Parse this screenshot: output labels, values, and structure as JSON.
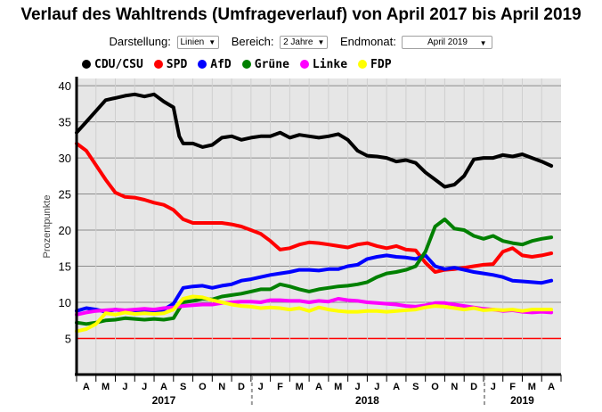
{
  "title": "Verlauf des Wahltrends (Umfrageverlauf) von April 2017 bis April 2019",
  "controls": {
    "darstellung": {
      "label": "Darstellung:",
      "value": "Linien"
    },
    "bereich": {
      "label": "Bereich:",
      "value": "2 Jahre"
    },
    "endmonat": {
      "label": "Endmonat:",
      "value": "April 2019"
    }
  },
  "chart_data": {
    "type": "line",
    "title": "Verlauf des Wahltrends (Umfrageverlauf) von April 2017 bis April 2019",
    "ylabel": "Prozentpunkte",
    "xlabel": "",
    "ylim": [
      0,
      41
    ],
    "yticks": [
      5,
      10,
      15,
      20,
      25,
      30,
      35,
      40
    ],
    "grid": true,
    "threshold": {
      "value": 5,
      "color": "#ff0000"
    },
    "months": [
      "A",
      "M",
      "J",
      "J",
      "A",
      "S",
      "O",
      "N",
      "D",
      "J",
      "F",
      "M",
      "A",
      "M",
      "J",
      "J",
      "A",
      "S",
      "O",
      "N",
      "D",
      "J",
      "F",
      "M",
      "A"
    ],
    "years": [
      {
        "label": "2017",
        "start_index": 0,
        "end_index": 8
      },
      {
        "label": "2018",
        "start_index": 9,
        "end_index": 20
      },
      {
        "label": "2019",
        "start_index": 21,
        "end_index": 24
      }
    ],
    "series": [
      {
        "name": "CDU/CSU",
        "color": "#000000",
        "points": [
          [
            0,
            33.5
          ],
          [
            0.5,
            35
          ],
          [
            1,
            36.5
          ],
          [
            1.5,
            38
          ],
          [
            2,
            38.3
          ],
          [
            2.5,
            38.6
          ],
          [
            3,
            38.8
          ],
          [
            3.5,
            38.5
          ],
          [
            4,
            38.8
          ],
          [
            4.5,
            37.8
          ],
          [
            5,
            37
          ],
          [
            5.3,
            33
          ],
          [
            5.5,
            32
          ],
          [
            6,
            32
          ],
          [
            6.5,
            31.5
          ],
          [
            7,
            31.8
          ],
          [
            7.5,
            32.8
          ],
          [
            8,
            33
          ],
          [
            8.5,
            32.5
          ],
          [
            9,
            32.8
          ],
          [
            9.5,
            33
          ],
          [
            10,
            33
          ],
          [
            10.5,
            33.5
          ],
          [
            11,
            32.8
          ],
          [
            11.5,
            33.2
          ],
          [
            12,
            33
          ],
          [
            12.5,
            32.8
          ],
          [
            13,
            33
          ],
          [
            13.5,
            33.3
          ],
          [
            14,
            32.5
          ],
          [
            14.5,
            31
          ],
          [
            15,
            30.3
          ],
          [
            15.5,
            30.2
          ],
          [
            16,
            30
          ],
          [
            16.5,
            29.5
          ],
          [
            17,
            29.7
          ],
          [
            17.5,
            29.3
          ],
          [
            18,
            28
          ],
          [
            18.5,
            27
          ],
          [
            19,
            26
          ],
          [
            19.5,
            26.3
          ],
          [
            20,
            27.5
          ],
          [
            20.5,
            29.8
          ],
          [
            21,
            30
          ],
          [
            21.5,
            30
          ],
          [
            22,
            30.4
          ],
          [
            22.5,
            30.2
          ],
          [
            23,
            30.5
          ],
          [
            23.5,
            30
          ],
          [
            24,
            29.5
          ],
          [
            24.5,
            28.9
          ]
        ]
      },
      {
        "name": "SPD",
        "color": "#ff0000",
        "points": [
          [
            0,
            32
          ],
          [
            0.5,
            31
          ],
          [
            1,
            29
          ],
          [
            1.5,
            27
          ],
          [
            2,
            25.2
          ],
          [
            2.5,
            24.6
          ],
          [
            3,
            24.5
          ],
          [
            3.5,
            24.2
          ],
          [
            4,
            23.8
          ],
          [
            4.5,
            23.5
          ],
          [
            5,
            22.8
          ],
          [
            5.5,
            21.5
          ],
          [
            6,
            21
          ],
          [
            6.5,
            21
          ],
          [
            7,
            21
          ],
          [
            7.5,
            21
          ],
          [
            8,
            20.8
          ],
          [
            8.5,
            20.5
          ],
          [
            9,
            20
          ],
          [
            9.5,
            19.5
          ],
          [
            10,
            18.5
          ],
          [
            10.5,
            17.3
          ],
          [
            11,
            17.5
          ],
          [
            11.5,
            18
          ],
          [
            12,
            18.3
          ],
          [
            12.5,
            18.2
          ],
          [
            13,
            18
          ],
          [
            13.5,
            17.8
          ],
          [
            14,
            17.6
          ],
          [
            14.5,
            18
          ],
          [
            15,
            18.2
          ],
          [
            15.5,
            17.8
          ],
          [
            16,
            17.5
          ],
          [
            16.5,
            17.8
          ],
          [
            17,
            17.3
          ],
          [
            17.5,
            17.2
          ],
          [
            18,
            15.5
          ],
          [
            18.5,
            14.2
          ],
          [
            19,
            14.5
          ],
          [
            19.5,
            14.6
          ],
          [
            20,
            14.8
          ],
          [
            20.5,
            15
          ],
          [
            21,
            15.2
          ],
          [
            21.5,
            15.3
          ],
          [
            22,
            17
          ],
          [
            22.5,
            17.5
          ],
          [
            23,
            16.5
          ],
          [
            23.5,
            16.3
          ],
          [
            24,
            16.5
          ],
          [
            24.5,
            16.8
          ]
        ]
      },
      {
        "name": "AfD",
        "color": "#0000ff",
        "points": [
          [
            0,
            8.8
          ],
          [
            0.5,
            9.2
          ],
          [
            1,
            9
          ],
          [
            1.5,
            8.7
          ],
          [
            2,
            9
          ],
          [
            2.5,
            8.8
          ],
          [
            3,
            8.7
          ],
          [
            3.5,
            8.6
          ],
          [
            4,
            8.8
          ],
          [
            4.5,
            9
          ],
          [
            5,
            9.8
          ],
          [
            5.5,
            12
          ],
          [
            6,
            12.2
          ],
          [
            6.5,
            12.3
          ],
          [
            7,
            12
          ],
          [
            7.5,
            12.3
          ],
          [
            8,
            12.5
          ],
          [
            8.5,
            13
          ],
          [
            9,
            13.2
          ],
          [
            9.5,
            13.5
          ],
          [
            10,
            13.8
          ],
          [
            10.5,
            14
          ],
          [
            11,
            14.2
          ],
          [
            11.5,
            14.5
          ],
          [
            12,
            14.5
          ],
          [
            12.5,
            14.4
          ],
          [
            13,
            14.6
          ],
          [
            13.5,
            14.6
          ],
          [
            14,
            15
          ],
          [
            14.5,
            15.2
          ],
          [
            15,
            16
          ],
          [
            15.5,
            16.3
          ],
          [
            16,
            16.5
          ],
          [
            16.5,
            16.3
          ],
          [
            17,
            16.2
          ],
          [
            17.5,
            16
          ],
          [
            18,
            16.5
          ],
          [
            18.5,
            15
          ],
          [
            19,
            14.6
          ],
          [
            19.5,
            14.8
          ],
          [
            20,
            14.5
          ],
          [
            20.5,
            14.2
          ],
          [
            21,
            14
          ],
          [
            21.5,
            13.8
          ],
          [
            22,
            13.5
          ],
          [
            22.5,
            13
          ],
          [
            23,
            12.9
          ],
          [
            23.5,
            12.8
          ],
          [
            24,
            12.7
          ],
          [
            24.5,
            13
          ]
        ]
      },
      {
        "name": "Grüne",
        "color": "#008000",
        "points": [
          [
            0,
            7.2
          ],
          [
            0.5,
            7
          ],
          [
            1,
            7.2
          ],
          [
            1.5,
            7.5
          ],
          [
            2,
            7.6
          ],
          [
            2.5,
            7.8
          ],
          [
            3,
            7.7
          ],
          [
            3.5,
            7.6
          ],
          [
            4,
            7.7
          ],
          [
            4.5,
            7.6
          ],
          [
            5,
            7.8
          ],
          [
            5.5,
            10
          ],
          [
            6,
            10.2
          ],
          [
            6.5,
            10.5
          ],
          [
            7,
            10.4
          ],
          [
            7.5,
            10.8
          ],
          [
            8,
            11
          ],
          [
            8.5,
            11.2
          ],
          [
            9,
            11.5
          ],
          [
            9.5,
            11.8
          ],
          [
            10,
            11.8
          ],
          [
            10.5,
            12.5
          ],
          [
            11,
            12.2
          ],
          [
            11.5,
            11.8
          ],
          [
            12,
            11.5
          ],
          [
            12.5,
            11.8
          ],
          [
            13,
            12
          ],
          [
            13.5,
            12.2
          ],
          [
            14,
            12.3
          ],
          [
            14.5,
            12.5
          ],
          [
            15,
            12.8
          ],
          [
            15.5,
            13.5
          ],
          [
            16,
            14
          ],
          [
            16.5,
            14.2
          ],
          [
            17,
            14.5
          ],
          [
            17.5,
            15
          ],
          [
            18,
            17
          ],
          [
            18.5,
            20.5
          ],
          [
            19,
            21.5
          ],
          [
            19.5,
            20.2
          ],
          [
            20,
            20
          ],
          [
            20.5,
            19.2
          ],
          [
            21,
            18.8
          ],
          [
            21.5,
            19.2
          ],
          [
            22,
            18.5
          ],
          [
            22.5,
            18.2
          ],
          [
            23,
            18
          ],
          [
            23.5,
            18.5
          ],
          [
            24,
            18.8
          ],
          [
            24.5,
            19
          ]
        ]
      },
      {
        "name": "Linke",
        "color": "#ff00ff",
        "points": [
          [
            0,
            8.3
          ],
          [
            0.5,
            8.6
          ],
          [
            1,
            8.8
          ],
          [
            1.5,
            8.9
          ],
          [
            2,
            9
          ],
          [
            2.5,
            8.9
          ],
          [
            3,
            9
          ],
          [
            3.5,
            9.1
          ],
          [
            4,
            9
          ],
          [
            4.5,
            9.2
          ],
          [
            5,
            9.3
          ],
          [
            5.5,
            9.5
          ],
          [
            6,
            9.6
          ],
          [
            6.5,
            9.7
          ],
          [
            7,
            9.7
          ],
          [
            7.5,
            9.9
          ],
          [
            8,
            10
          ],
          [
            8.5,
            10.1
          ],
          [
            9,
            10.1
          ],
          [
            9.5,
            10
          ],
          [
            10,
            10.3
          ],
          [
            10.5,
            10.3
          ],
          [
            11,
            10.2
          ],
          [
            11.5,
            10.2
          ],
          [
            12,
            10
          ],
          [
            12.5,
            10.2
          ],
          [
            13,
            10.1
          ],
          [
            13.5,
            10.5
          ],
          [
            14,
            10.3
          ],
          [
            14.5,
            10.2
          ],
          [
            15,
            10
          ],
          [
            15.5,
            9.9
          ],
          [
            16,
            9.8
          ],
          [
            16.5,
            9.7
          ],
          [
            17,
            9.5
          ],
          [
            17.5,
            9.4
          ],
          [
            18,
            9.6
          ],
          [
            18.5,
            9.9
          ],
          [
            19,
            9.9
          ],
          [
            19.5,
            9.7
          ],
          [
            20,
            9.5
          ],
          [
            20.5,
            9.3
          ],
          [
            21,
            9.1
          ],
          [
            21.5,
            9
          ],
          [
            22,
            8.8
          ],
          [
            22.5,
            8.9
          ],
          [
            23,
            8.7
          ],
          [
            23.5,
            8.6
          ],
          [
            24,
            8.7
          ],
          [
            24.5,
            8.6
          ]
        ]
      },
      {
        "name": "FDP",
        "color": "#ffff00",
        "points": [
          [
            0,
            6
          ],
          [
            0.5,
            6.3
          ],
          [
            1,
            7
          ],
          [
            1.5,
            8.5
          ],
          [
            2,
            8.3
          ],
          [
            2.5,
            8.6
          ],
          [
            3,
            8.4
          ],
          [
            3.5,
            8.5
          ],
          [
            4,
            8.4
          ],
          [
            4.5,
            8.5
          ],
          [
            5,
            9
          ],
          [
            5.5,
            10.5
          ],
          [
            6,
            10.8
          ],
          [
            6.5,
            10.7
          ],
          [
            7,
            10.3
          ],
          [
            7.5,
            10
          ],
          [
            8,
            9.7
          ],
          [
            8.5,
            9.5
          ],
          [
            9,
            9.4
          ],
          [
            9.5,
            9.2
          ],
          [
            10,
            9.3
          ],
          [
            10.5,
            9.2
          ],
          [
            11,
            9
          ],
          [
            11.5,
            9.2
          ],
          [
            12,
            8.8
          ],
          [
            12.5,
            9.3
          ],
          [
            13,
            9
          ],
          [
            13.5,
            8.8
          ],
          [
            14,
            8.7
          ],
          [
            14.5,
            8.7
          ],
          [
            15,
            8.8
          ],
          [
            15.5,
            8.8
          ],
          [
            16,
            8.7
          ],
          [
            16.5,
            8.8
          ],
          [
            17,
            8.9
          ],
          [
            17.5,
            9
          ],
          [
            18,
            9.3
          ],
          [
            18.5,
            9.5
          ],
          [
            19,
            9.4
          ],
          [
            19.5,
            9.2
          ],
          [
            20,
            9
          ],
          [
            20.5,
            9.2
          ],
          [
            21,
            8.9
          ],
          [
            21.5,
            9
          ],
          [
            22,
            8.9
          ],
          [
            22.5,
            9
          ],
          [
            23,
            8.8
          ],
          [
            23.5,
            9
          ],
          [
            24,
            9
          ],
          [
            24.5,
            9
          ]
        ]
      }
    ]
  }
}
